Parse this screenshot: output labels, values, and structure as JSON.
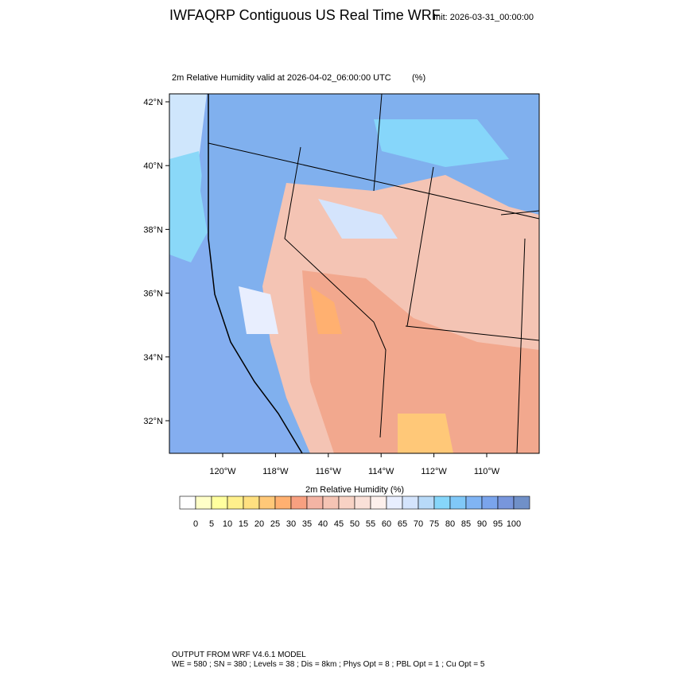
{
  "header": {
    "title": "IWFAQRP Contiguous US Real Time WRF",
    "init": "Init: 2026-03-31_00:00:00"
  },
  "map": {
    "subtitle": "2m Relative Humidity valid at 2026-04-02_06:00:00 UTC",
    "units": "(%)",
    "lat_labels": [
      "42°N",
      "40°N",
      "38°N",
      "36°N",
      "34°N",
      "32°N"
    ],
    "lon_labels": [
      "120°W",
      "118°W",
      "116°W",
      "114°W",
      "112°W",
      "110°W"
    ]
  },
  "colorbar": {
    "title": "2m Relative Humidity  (%)",
    "labels": [
      "0",
      "5",
      "10",
      "15",
      "20",
      "25",
      "30",
      "35",
      "40",
      "45",
      "50",
      "55",
      "60",
      "65",
      "70",
      "75",
      "80",
      "85",
      "90",
      "95",
      "100"
    ],
    "colors": [
      "#ffffff",
      "#ffffc8",
      "#ffff9e",
      "#fff08c",
      "#ffe080",
      "#ffc878",
      "#ffb070",
      "#f8a080",
      "#f4b4a4",
      "#f5c4b4",
      "#f8d2c4",
      "#fae0d8",
      "#fdf0ec",
      "#e8eefe",
      "#d4e4fc",
      "#b8daf8",
      "#86d6fa",
      "#80c8f8",
      "#80b4f4",
      "#7aa4ec",
      "#7896dc",
      "#7090c8"
    ]
  },
  "footer": {
    "line1": "OUTPUT FROM WRF V4.6.1 MODEL",
    "line2": "WE = 580 ; SN = 380 ; Levels = 38 ; Dis = 8km ; Phys Opt = 8 ; PBL Opt = 1 ; Cu Opt = 5"
  }
}
